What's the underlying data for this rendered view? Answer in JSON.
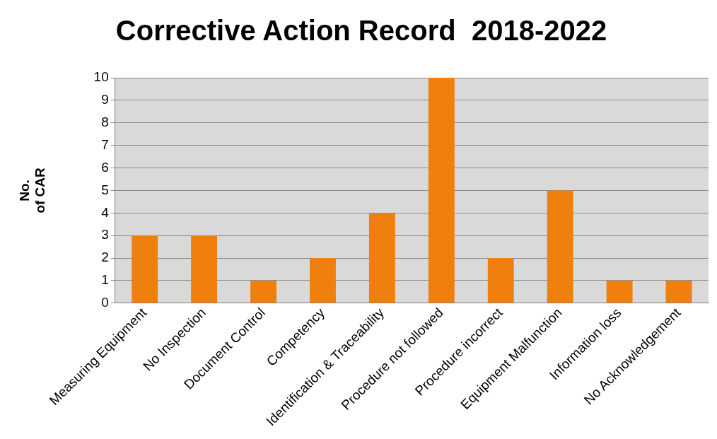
{
  "chart_data": {
    "type": "bar",
    "title": "Corrective Action Record  2018-2022",
    "ylabel": "No.\nof CAR",
    "categories": [
      "Measuring Equipment",
      "No Inspection",
      "Document Control",
      "Competency",
      "Identification & Traceability",
      "Procedure not followed",
      "Procedure incorrect",
      "Equipment Malfunction",
      "Information loss",
      "No Acknowledgement"
    ],
    "values": [
      3,
      3,
      1,
      2,
      4,
      10,
      2,
      5,
      1,
      1
    ],
    "color": "#f0800e",
    "ylim": [
      0,
      10
    ],
    "yticks": [
      0,
      1,
      2,
      3,
      4,
      5,
      6,
      7,
      8,
      9,
      10
    ],
    "grid": "y",
    "legend": false
  }
}
